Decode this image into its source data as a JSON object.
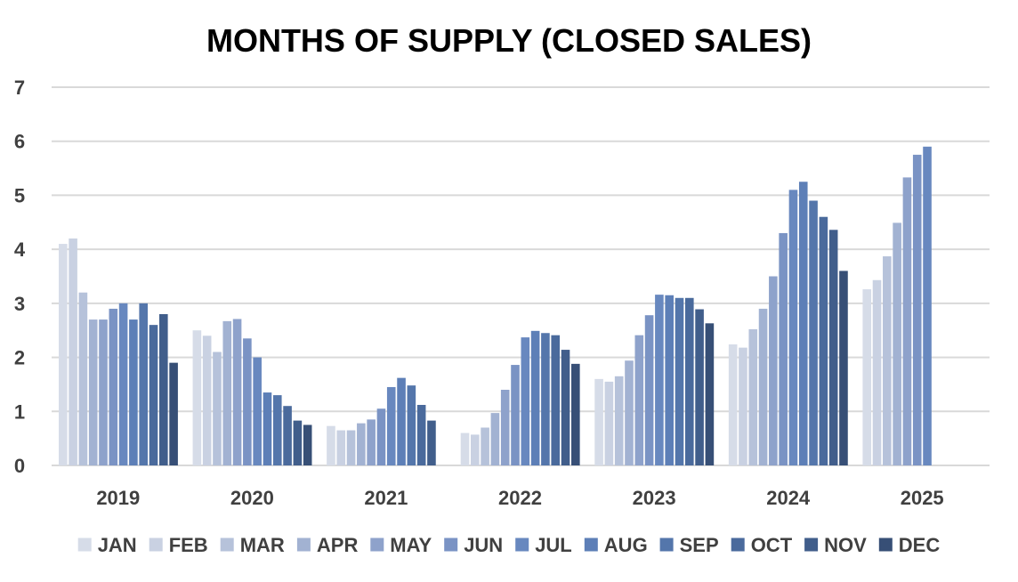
{
  "chart_data": {
    "type": "bar",
    "title": "MONTHS OF SUPPLY (CLOSED SALES)",
    "xlabel": "",
    "ylabel": "",
    "ylim": [
      0,
      7
    ],
    "yticks": [
      0,
      1,
      2,
      3,
      4,
      5,
      6,
      7
    ],
    "grid": true,
    "legend_position": "bottom",
    "categories": [
      "2019",
      "2020",
      "2021",
      "2022",
      "2023",
      "2024",
      "2025"
    ],
    "series": [
      {
        "name": "JAN",
        "color": "#d6dce8",
        "values": [
          4.1,
          2.5,
          0.73,
          0.6,
          1.6,
          2.24,
          3.26
        ]
      },
      {
        "name": "FEB",
        "color": "#c9d1e2",
        "values": [
          4.2,
          2.4,
          0.65,
          0.57,
          1.55,
          2.18,
          3.43
        ]
      },
      {
        "name": "MAR",
        "color": "#b6c2da",
        "values": [
          3.2,
          2.1,
          0.65,
          0.7,
          1.65,
          2.52,
          3.87
        ]
      },
      {
        "name": "APR",
        "color": "#a2b2d2",
        "values": [
          2.7,
          2.67,
          0.78,
          0.97,
          1.94,
          2.9,
          4.49
        ]
      },
      {
        "name": "MAY",
        "color": "#8ea2cb",
        "values": [
          2.7,
          2.71,
          0.85,
          1.4,
          2.41,
          3.5,
          5.33
        ]
      },
      {
        "name": "JUN",
        "color": "#7a93c4",
        "values": [
          2.9,
          2.35,
          1.05,
          1.86,
          2.78,
          4.3,
          5.75
        ]
      },
      {
        "name": "JUL",
        "color": "#6888bf",
        "values": [
          3.0,
          2.0,
          1.45,
          2.37,
          3.16,
          5.1,
          5.9
        ]
      },
      {
        "name": "AUG",
        "color": "#5d7fb7",
        "values": [
          2.7,
          1.35,
          1.62,
          2.49,
          3.15,
          5.25,
          null
        ]
      },
      {
        "name": "SEP",
        "color": "#5476ab",
        "values": [
          3.0,
          1.3,
          1.48,
          2.45,
          3.1,
          4.9,
          null
        ]
      },
      {
        "name": "OCT",
        "color": "#4a6a9c",
        "values": [
          2.6,
          1.1,
          1.12,
          2.41,
          3.1,
          4.6,
          null
        ]
      },
      {
        "name": "NOV",
        "color": "#415e8b",
        "values": [
          2.8,
          0.83,
          0.83,
          2.14,
          2.89,
          4.36,
          null
        ]
      },
      {
        "name": "DEC",
        "color": "#374f76",
        "values": [
          1.9,
          0.75,
          null,
          1.88,
          2.63,
          3.6,
          null
        ]
      }
    ]
  }
}
